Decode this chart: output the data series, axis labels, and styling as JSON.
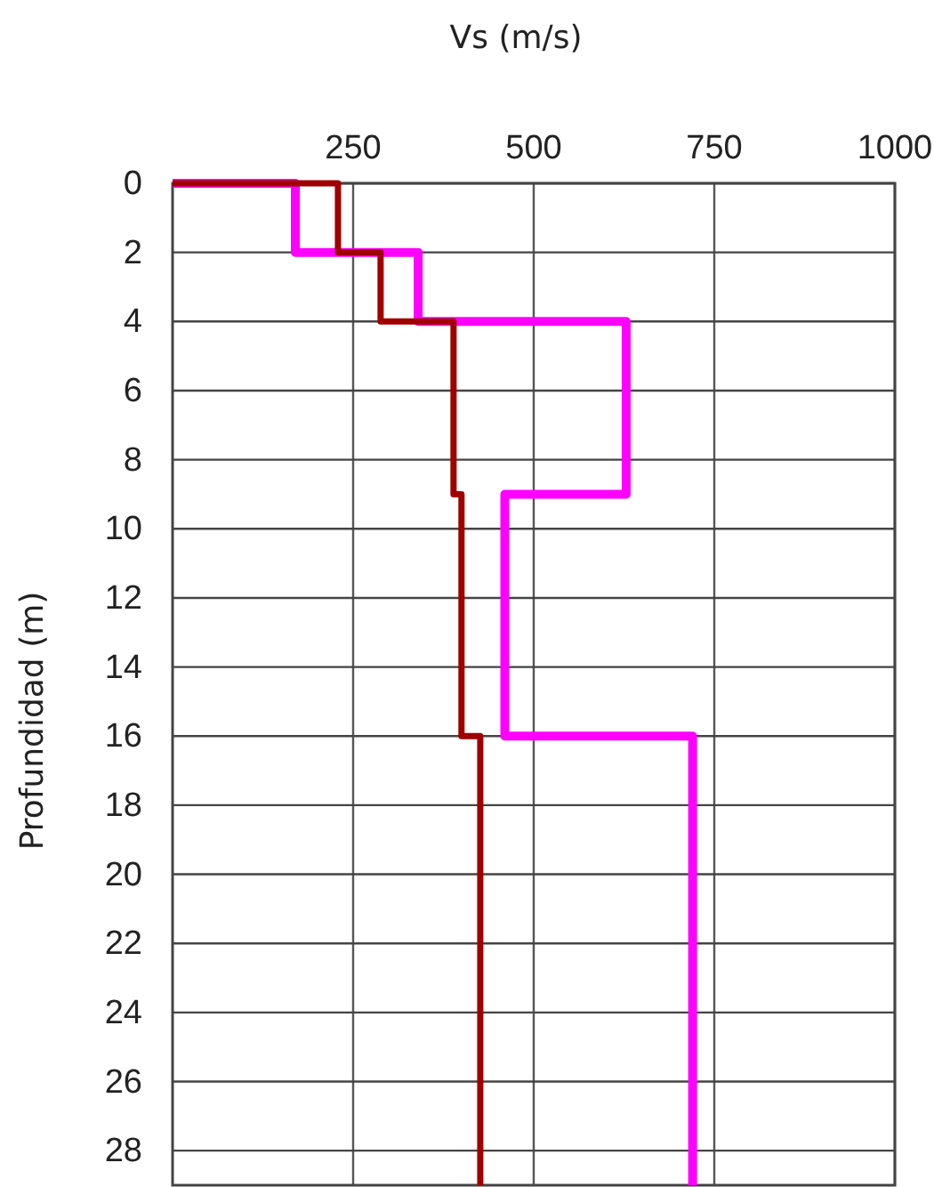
{
  "chart_data": {
    "type": "line",
    "xlabel": "Vs (m/s)",
    "ylabel": "Profundidad (m)",
    "xlim": [
      0,
      1000
    ],
    "xticks": [
      250,
      500,
      750,
      1000
    ],
    "ylim": [
      29,
      0
    ],
    "yticks": [
      0,
      2,
      4,
      6,
      8,
      10,
      12,
      14,
      16,
      18,
      20,
      22,
      24,
      26,
      28
    ],
    "grid": true,
    "marker": "none",
    "line_style": "solid",
    "series": [
      {
        "color": "#ff00ff",
        "x": [
          0,
          170,
          170,
          340,
          340,
          628,
          628,
          460,
          460,
          720,
          720
        ],
        "values": [
          0,
          0,
          2,
          2,
          4,
          4,
          9,
          9,
          16,
          16,
          29
        ]
      },
      {
        "color": "#a00000",
        "x": [
          0,
          229,
          229,
          288,
          288,
          389,
          389,
          400,
          400,
          426,
          426
        ],
        "values": [
          0,
          0,
          2,
          2,
          4,
          4,
          9,
          9,
          16,
          16,
          29
        ]
      }
    ]
  }
}
